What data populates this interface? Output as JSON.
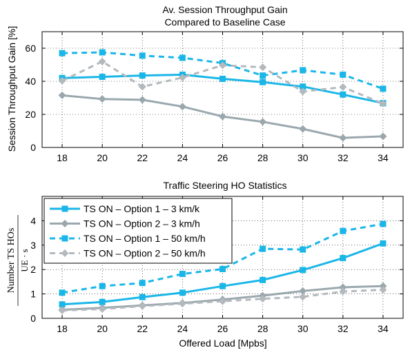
{
  "chart_data": [
    {
      "type": "line",
      "title_line1": "Av. Session Throughput Gain",
      "title_line2": "Compared to Baseline Case",
      "xlabel": "",
      "ylabel": "Session Throughput Gain [%]",
      "x": [
        18,
        20,
        22,
        24,
        26,
        28,
        30,
        32,
        34
      ],
      "xlim": [
        17,
        35
      ],
      "ylim": [
        0,
        70
      ],
      "xticks": [
        18,
        20,
        22,
        24,
        26,
        28,
        30,
        32,
        34
      ],
      "yticks": [
        0,
        20,
        40,
        60
      ],
      "grid": true,
      "series": [
        {
          "key": "s1",
          "values": [
            42,
            42.7,
            43.5,
            44,
            41.5,
            39.5,
            36.8,
            32,
            26.8
          ]
        },
        {
          "key": "s2",
          "values": [
            31.5,
            29.3,
            28.8,
            24.7,
            18.7,
            15.5,
            11.2,
            5.8,
            6.7
          ]
        },
        {
          "key": "s3",
          "values": [
            57,
            57.5,
            55.5,
            54.2,
            51,
            43.5,
            46.7,
            44,
            35.5
          ]
        },
        {
          "key": "s4",
          "values": [
            40.3,
            52,
            36.7,
            42.3,
            49.7,
            48.5,
            33.8,
            36.5,
            26.5
          ]
        }
      ]
    },
    {
      "type": "line",
      "title": "Traffic Steering HO Statistics",
      "xlabel": "Offered Load [Mpbs]",
      "ylabel_numerator": "Number TS HOs",
      "ylabel_denominator": "UE · s",
      "x": [
        18,
        20,
        22,
        24,
        26,
        28,
        30,
        32,
        34
      ],
      "xlim": [
        17,
        35
      ],
      "ylim": [
        0,
        5
      ],
      "xticks": [
        18,
        20,
        22,
        24,
        26,
        28,
        30,
        32,
        34
      ],
      "yticks": [
        0,
        1,
        2,
        3,
        4
      ],
      "grid": true,
      "legend_position": "top-left",
      "series": [
        {
          "key": "s1",
          "values": [
            0.57,
            0.67,
            0.87,
            1.05,
            1.32,
            1.57,
            1.98,
            2.47,
            3.07
          ]
        },
        {
          "key": "s2",
          "values": [
            0.35,
            0.43,
            0.53,
            0.63,
            0.77,
            0.93,
            1.12,
            1.27,
            1.32
          ]
        },
        {
          "key": "s3",
          "values": [
            1.05,
            1.32,
            1.45,
            1.82,
            2.02,
            2.85,
            2.82,
            3.58,
            3.87
          ]
        },
        {
          "key": "s4",
          "values": [
            0.32,
            0.38,
            0.5,
            0.6,
            0.7,
            0.8,
            0.88,
            1.1,
            1.17
          ]
        }
      ]
    }
  ],
  "legend": [
    {
      "key": "s1",
      "label": "TS ON – Option 1 – 3 km/k",
      "color": "#1ab6e8",
      "dash": "solid",
      "marker": "square"
    },
    {
      "key": "s2",
      "label": "TS ON – Option 2 – 3 km/h",
      "color": "#9aa8ae",
      "dash": "solid",
      "marker": "diamond"
    },
    {
      "key": "s3",
      "label": "TS ON – Option 1 – 50 km/h",
      "color": "#1ab6e8",
      "dash": "dashed",
      "marker": "square"
    },
    {
      "key": "s4",
      "label": "TS ON – Option 2 – 50 km/h",
      "color": "#b3b9bd",
      "dash": "dashed",
      "marker": "diamond"
    }
  ]
}
